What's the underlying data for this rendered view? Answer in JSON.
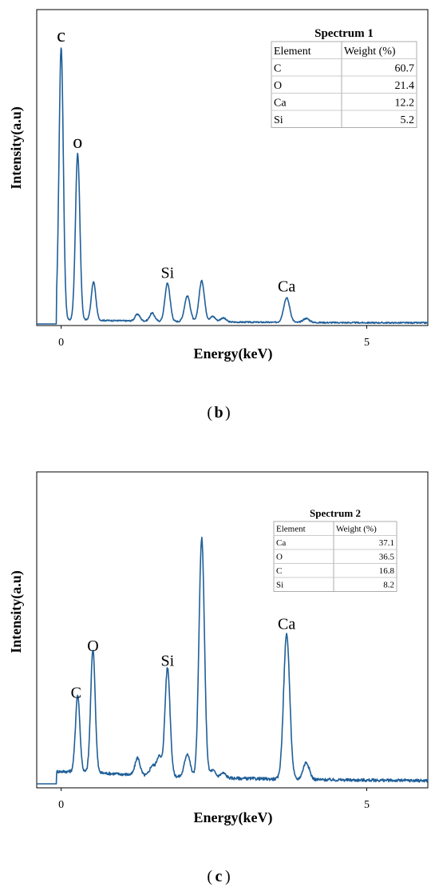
{
  "chart_data": [
    {
      "type": "line",
      "panel_label": "b",
      "xlabel": "Energy(keV)",
      "ylabel": "Intensity(a.u)",
      "xlim": [
        -0.4,
        6.0
      ],
      "ylim": [
        0,
        100
      ],
      "x_ticks": [
        0,
        5
      ],
      "color": "#1f5f99",
      "peaks": [
        {
          "x": 0.0,
          "y": 100
        },
        {
          "x": 0.27,
          "y": 61
        },
        {
          "x": 0.53,
          "y": 14
        },
        {
          "x": 1.25,
          "y": 2.5
        },
        {
          "x": 1.49,
          "y": 3
        },
        {
          "x": 1.74,
          "y": 14
        },
        {
          "x": 2.05,
          "y": 5
        },
        {
          "x": 2.08,
          "y": 5
        },
        {
          "x": 2.3,
          "y": 15
        },
        {
          "x": 2.48,
          "y": 2
        },
        {
          "x": 2.65,
          "y": 1.5
        },
        {
          "x": 3.69,
          "y": 9
        },
        {
          "x": 4.01,
          "y": 1.5
        }
      ],
      "annotations": [
        {
          "text": "c",
          "x": 0.0,
          "y": 100
        },
        {
          "text": "o",
          "x": 0.27,
          "y": 61
        },
        {
          "text": "Si",
          "x": 1.74,
          "y": 14
        },
        {
          "text": "Ca",
          "x": 3.69,
          "y": 9
        }
      ],
      "table": {
        "title": "Spectrum 1",
        "headers": [
          "Element",
          "Weight (%)"
        ],
        "rows": [
          [
            "C",
            "60.7"
          ],
          [
            "O",
            "21.4"
          ],
          [
            "Ca",
            "12.2"
          ],
          [
            "Si",
            "5.2"
          ]
        ]
      }
    },
    {
      "type": "line",
      "panel_label": "c",
      "xlabel": "Energy(keV)",
      "ylabel": "Intensity(a.u)",
      "xlim": [
        -0.4,
        6.0
      ],
      "ylim": [
        0,
        100
      ],
      "x_ticks": [
        0,
        5
      ],
      "color": "#1f5f99",
      "peaks": [
        {
          "x": 0.27,
          "y": 31
        },
        {
          "x": 0.52,
          "y": 50
        },
        {
          "x": 1.25,
          "y": 7
        },
        {
          "x": 1.49,
          "y": 4
        },
        {
          "x": 1.6,
          "y": 8
        },
        {
          "x": 1.74,
          "y": 44
        },
        {
          "x": 2.05,
          "y": 5
        },
        {
          "x": 2.08,
          "y": 5
        },
        {
          "x": 2.3,
          "y": 97
        },
        {
          "x": 2.48,
          "y": 3
        },
        {
          "x": 2.65,
          "y": 2
        },
        {
          "x": 3.69,
          "y": 59
        },
        {
          "x": 4.01,
          "y": 7
        }
      ],
      "annotations": [
        {
          "text": "C",
          "x": 0.27,
          "y": 31
        },
        {
          "text": "O",
          "x": 0.52,
          "y": 50
        },
        {
          "text": "Si",
          "x": 1.74,
          "y": 44
        },
        {
          "text": "Ca",
          "x": 3.69,
          "y": 59
        }
      ],
      "table": {
        "title": "Spectrum 2",
        "headers": [
          "Element",
          "Weight (%)"
        ],
        "rows": [
          [
            "Ca",
            "37.1"
          ],
          [
            "O",
            "36.5"
          ],
          [
            "C",
            "16.8"
          ],
          [
            "Si",
            "8.2"
          ]
        ]
      }
    }
  ]
}
